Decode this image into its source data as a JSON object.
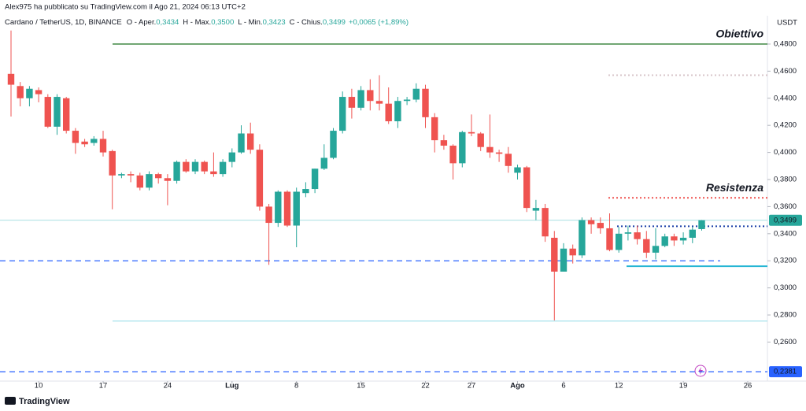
{
  "chart_data": {
    "type": "candlestick",
    "title": "Alex975 ha pubblicato su TradingView.com il Ago 21, 2024 06:13 UTC+2",
    "symbol": "Cardano / TetherUS, 1D, BINANCE",
    "legend": [
      {
        "label": "O - Aper.",
        "value": "0,3434"
      },
      {
        "label": "H - Max.",
        "value": "0,3500"
      },
      {
        "label": "L - Min.",
        "value": "0,3423"
      },
      {
        "label": "C - Chius.",
        "value": "0,3499"
      }
    ],
    "change": "+0,0065 (+1,89%)",
    "currency": "USDT",
    "brand": "TradingView",
    "up_color": "#26a69a",
    "down_color": "#ef5350",
    "open": [
      0.458,
      0.449,
      0.44,
      0.446,
      0.441,
      0.419,
      0.44,
      0.416,
      0.408,
      0.407,
      0.41,
      0.401,
      0.383,
      0.384,
      0.383,
      0.374,
      0.384,
      0.381,
      0.379,
      0.393,
      0.386,
      0.393,
      0.386,
      0.384,
      0.393,
      0.4,
      0.414,
      0.402,
      0.36,
      0.348,
      0.371,
      0.346,
      0.37,
      0.373,
      0.388,
      0.396,
      0.416,
      0.441,
      0.433,
      0.446,
      0.438,
      0.436,
      0.423,
      0.438,
      0.439,
      0.447,
      0.426,
      0.409,
      0.405,
      0.392,
      0.415,
      0.414,
      0.404,
      0.4,
      0.399,
      0.385,
      0.389,
      0.357,
      0.359,
      0.337,
      0.312,
      0.329,
      0.324,
      0.35,
      0.348,
      0.344,
      0.328,
      0.34,
      0.341,
      0.336,
      0.326,
      0.331,
      0.338,
      0.335,
      0.337,
      0.3434
    ],
    "high": [
      0.49,
      0.452,
      0.449,
      0.448,
      0.443,
      0.443,
      0.441,
      0.418,
      0.41,
      0.412,
      0.416,
      0.402,
      0.385,
      0.386,
      0.385,
      0.386,
      0.385,
      0.384,
      0.394,
      0.395,
      0.395,
      0.394,
      0.4,
      0.395,
      0.403,
      0.42,
      0.422,
      0.406,
      0.362,
      0.372,
      0.372,
      0.374,
      0.378,
      0.388,
      0.406,
      0.418,
      0.445,
      0.447,
      0.449,
      0.454,
      0.457,
      0.448,
      0.441,
      0.441,
      0.451,
      0.45,
      0.429,
      0.413,
      0.406,
      0.416,
      0.428,
      0.415,
      0.428,
      0.402,
      0.404,
      0.391,
      0.39,
      0.365,
      0.362,
      0.342,
      0.333,
      0.332,
      0.352,
      0.352,
      0.352,
      0.355,
      0.345,
      0.346,
      0.346,
      0.342,
      0.344,
      0.34,
      0.34,
      0.341,
      0.345,
      0.35
    ],
    "low": [
      0.4265,
      0.434,
      0.434,
      0.437,
      0.418,
      0.413,
      0.414,
      0.399,
      0.404,
      0.405,
      0.397,
      0.358,
      0.381,
      0.378,
      0.372,
      0.372,
      0.377,
      0.361,
      0.377,
      0.385,
      0.384,
      0.384,
      0.382,
      0.382,
      0.389,
      0.399,
      0.399,
      0.357,
      0.317,
      0.345,
      0.345,
      0.33,
      0.367,
      0.37,
      0.387,
      0.395,
      0.414,
      0.425,
      0.431,
      0.431,
      0.431,
      0.421,
      0.418,
      0.435,
      0.437,
      0.418,
      0.4,
      0.402,
      0.38,
      0.389,
      0.412,
      0.401,
      0.396,
      0.393,
      0.385,
      0.38,
      0.356,
      0.35,
      0.334,
      0.276,
      0.312,
      0.318,
      0.322,
      0.34,
      0.34,
      0.327,
      0.326,
      0.335,
      0.332,
      0.322,
      0.321,
      0.33,
      0.331,
      0.332,
      0.333,
      0.3423
    ],
    "close": [
      0.45,
      0.44,
      0.447,
      0.443,
      0.419,
      0.441,
      0.416,
      0.407,
      0.406,
      0.41,
      0.4,
      0.383,
      0.384,
      0.383,
      0.374,
      0.384,
      0.381,
      0.379,
      0.393,
      0.386,
      0.393,
      0.386,
      0.384,
      0.393,
      0.4,
      0.414,
      0.402,
      0.36,
      0.348,
      0.371,
      0.346,
      0.371,
      0.373,
      0.388,
      0.396,
      0.416,
      0.441,
      0.433,
      0.446,
      0.438,
      0.436,
      0.423,
      0.438,
      0.439,
      0.447,
      0.426,
      0.409,
      0.405,
      0.392,
      0.415,
      0.414,
      0.404,
      0.4,
      0.399,
      0.39,
      0.389,
      0.359,
      0.359,
      0.338,
      0.312,
      0.329,
      0.324,
      0.35,
      0.347,
      0.344,
      0.328,
      0.34,
      0.341,
      0.336,
      0.326,
      0.331,
      0.338,
      0.335,
      0.337,
      0.343,
      0.3499
    ],
    "xticks": [
      {
        "value": 3,
        "label": "10"
      },
      {
        "value": 10,
        "label": "17"
      },
      {
        "value": 17,
        "label": "24"
      },
      {
        "value": 24,
        "label": "Lug"
      },
      {
        "value": 31,
        "label": "8"
      },
      {
        "value": 38,
        "label": "15"
      },
      {
        "value": 45,
        "label": "22"
      },
      {
        "value": 50,
        "label": "27"
      },
      {
        "value": 55,
        "label": "Ago"
      },
      {
        "value": 60,
        "label": "6"
      },
      {
        "value": 66,
        "label": "12"
      },
      {
        "value": 73,
        "label": "19"
      },
      {
        "value": 80,
        "label": "26"
      }
    ],
    "ylim": [
      0.2312,
      0.5009
    ],
    "yticks": [
      {
        "value": 0.48,
        "label": "0,4800"
      },
      {
        "value": 0.46,
        "label": "0,4600"
      },
      {
        "value": 0.44,
        "label": "0,4400"
      },
      {
        "value": 0.42,
        "label": "0,4200"
      },
      {
        "value": 0.4,
        "label": "0,4000"
      },
      {
        "value": 0.38,
        "label": "0,3800"
      },
      {
        "value": 0.36,
        "label": "0,3600"
      },
      {
        "value": 0.34,
        "label": "0,3400"
      },
      {
        "value": 0.32,
        "label": "0,3200"
      },
      {
        "value": 0.3,
        "label": "0,3000"
      },
      {
        "value": 0.28,
        "label": "0,2800"
      },
      {
        "value": 0.26,
        "label": "0,2600"
      }
    ],
    "levels": [
      {
        "value": 0.48,
        "color": "#2e7d32",
        "style": "solid",
        "label": "Obiettivo",
        "label_color": "#26c6da"
      },
      {
        "value": 0.457,
        "color": "#d7c4c8",
        "style": "dotted"
      },
      {
        "value": 0.3665,
        "color": "#ef5350",
        "style": "dotted",
        "label": "Resistenza",
        "label_color": "#ef5350"
      },
      {
        "value": 0.3455,
        "color": "#1a3fa8",
        "style": "dotted"
      },
      {
        "value": 0.35,
        "color": "#b9e6e8",
        "style": "solid"
      },
      {
        "value": 0.32,
        "color": "#2962ff",
        "style": "dashed"
      },
      {
        "value": 0.316,
        "color": "#26b6d4",
        "style": "thick"
      },
      {
        "value": 0.2755,
        "color": "#a8e3ec",
        "style": "solid"
      },
      {
        "value": 0.2381,
        "color": "#2962ff",
        "style": "dashed"
      }
    ],
    "price_labels": [
      {
        "value": 0.3499,
        "label": "0,3499",
        "color": "#26a69a"
      },
      {
        "value": 0.2381,
        "label": "0,2381",
        "color": "#2962ff"
      }
    ]
  }
}
